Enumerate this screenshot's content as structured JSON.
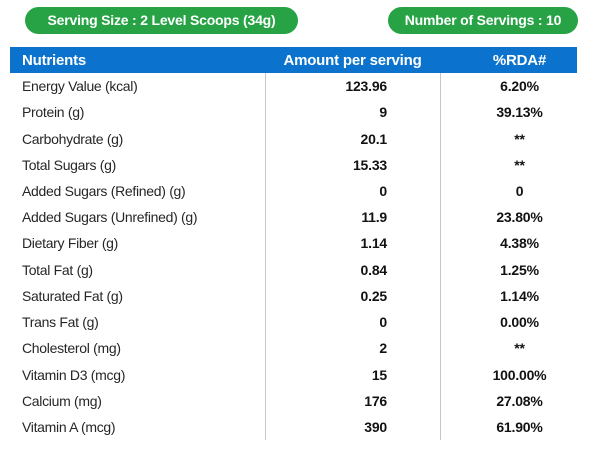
{
  "badges": {
    "serving_size": "Serving Size : 2 Level Scoops (34g)",
    "number_of_servings": "Number of Servings : 10"
  },
  "table": {
    "headers": [
      "Nutrients",
      "Amount per serving",
      "%RDA#"
    ],
    "rows": [
      {
        "nutrient": "Energy Value (kcal)",
        "amount": "123.96",
        "rda": "6.20%"
      },
      {
        "nutrient": "Protein (g)",
        "amount": "9",
        "rda": "39.13%"
      },
      {
        "nutrient": "Carbohydrate (g)",
        "amount": "20.1",
        "rda": "**"
      },
      {
        "nutrient": "Total Sugars (g)",
        "amount": "15.33",
        "rda": "**"
      },
      {
        "nutrient": "Added Sugars (Refined) (g)",
        "amount": "0",
        "rda": "0"
      },
      {
        "nutrient": "Added Sugars (Unrefined) (g)",
        "amount": "11.9",
        "rda": "23.80%"
      },
      {
        "nutrient": "Dietary Fiber (g)",
        "amount": "1.14",
        "rda": "4.38%"
      },
      {
        "nutrient": "Total Fat (g)",
        "amount": "0.84",
        "rda": "1.25%"
      },
      {
        "nutrient": "Saturated Fat (g)",
        "amount": "0.25",
        "rda": "1.14%"
      },
      {
        "nutrient": "Trans Fat (g)",
        "amount": "0",
        "rda": "0.00%"
      },
      {
        "nutrient": "Cholesterol (mg)",
        "amount": "2",
        "rda": "**"
      },
      {
        "nutrient": "Vitamin D3 (mcg)",
        "amount": "15",
        "rda": "100.00%"
      },
      {
        "nutrient": "Calcium (mg)",
        "amount": "176",
        "rda": "27.08%"
      },
      {
        "nutrient": "Vitamin A (mcg)",
        "amount": "390",
        "rda": "61.90%"
      }
    ]
  },
  "colors": {
    "badge_green": "#27A346",
    "header_blue": "#0B73CD",
    "divider_gray": "#C6C6C6"
  }
}
